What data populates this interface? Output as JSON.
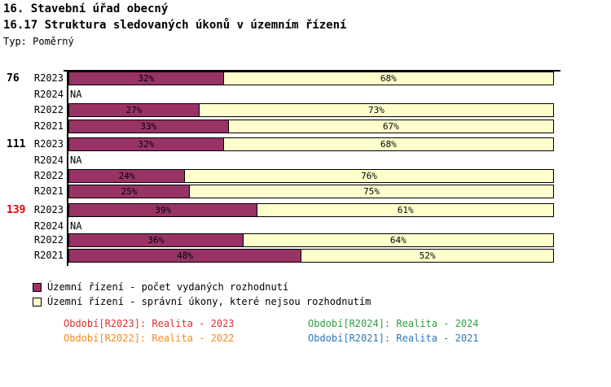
{
  "header": {
    "title_line1": "16. Stavební úřad obecný",
    "title_line2": "16.17 Struktura sledovaných úkonů v územním řízení",
    "type_label": "Typ: Poměrný"
  },
  "chart_data": {
    "type": "bar",
    "orientation": "horizontal",
    "stacked": true,
    "unit": "%",
    "xlim": [
      0,
      100
    ],
    "grid": false,
    "na_label": "NA",
    "series": [
      {
        "name": "Územní řízení - počet vydaných rozhodnutí",
        "color": "#993366"
      },
      {
        "name": "Územní řízení - správní úkony, které nejsou rozhodnutím",
        "color": "#ffffcc"
      }
    ],
    "groups": [
      {
        "label": "76",
        "label_color": "#000000",
        "rows": [
          {
            "period": "R2023",
            "na": false,
            "values": [
              32,
              68
            ],
            "labels": [
              "32%",
              "68%"
            ]
          },
          {
            "period": "R2024",
            "na": true,
            "na_label": "NA"
          },
          {
            "period": "R2022",
            "na": false,
            "values": [
              27,
              73
            ],
            "labels": [
              "27%",
              "73%"
            ]
          },
          {
            "period": "R2021",
            "na": false,
            "values": [
              33,
              67
            ],
            "labels": [
              "33%",
              "67%"
            ]
          }
        ]
      },
      {
        "label": "111",
        "label_color": "#000000",
        "rows": [
          {
            "period": "R2023",
            "na": false,
            "values": [
              32,
              68
            ],
            "labels": [
              "32%",
              "68%"
            ]
          },
          {
            "period": "R2024",
            "na": true,
            "na_label": "NA"
          },
          {
            "period": "R2022",
            "na": false,
            "values": [
              24,
              76
            ],
            "labels": [
              "24%",
              "76%"
            ]
          },
          {
            "period": "R2021",
            "na": false,
            "values": [
              25,
              75
            ],
            "labels": [
              "25%",
              "75%"
            ]
          }
        ]
      },
      {
        "label": "139",
        "label_color": "#ee0000",
        "rows": [
          {
            "period": "R2023",
            "na": false,
            "values": [
              39,
              61
            ],
            "labels": [
              "39%",
              "61%"
            ]
          },
          {
            "period": "R2024",
            "na": true,
            "na_label": "NA"
          },
          {
            "period": "R2022",
            "na": false,
            "values": [
              36,
              64
            ],
            "labels": [
              "36%",
              "64%"
            ]
          },
          {
            "period": "R2021",
            "na": false,
            "values": [
              48,
              52
            ],
            "labels": [
              "48%",
              "52%"
            ]
          }
        ]
      }
    ]
  },
  "legend": {
    "items": [
      {
        "label": "Územní řízení - počet vydaných rozhodnutí",
        "color": "#993366"
      },
      {
        "label": "Územní řízení - správní úkony, které nejsou rozhodnutím",
        "color": "#ffffcc"
      }
    ]
  },
  "footnotes": [
    {
      "text": "Období[R2023]: Realita - 2023",
      "color": "#d9302e"
    },
    {
      "text": "Období[R2024]: Realita - 2024",
      "color": "#2f9e3e"
    },
    {
      "text": "Období[R2022]: Realita - 2022",
      "color": "#f28a1e"
    },
    {
      "text": "Období[R2021]: Realita - 2021",
      "color": "#2b78b8"
    }
  ]
}
